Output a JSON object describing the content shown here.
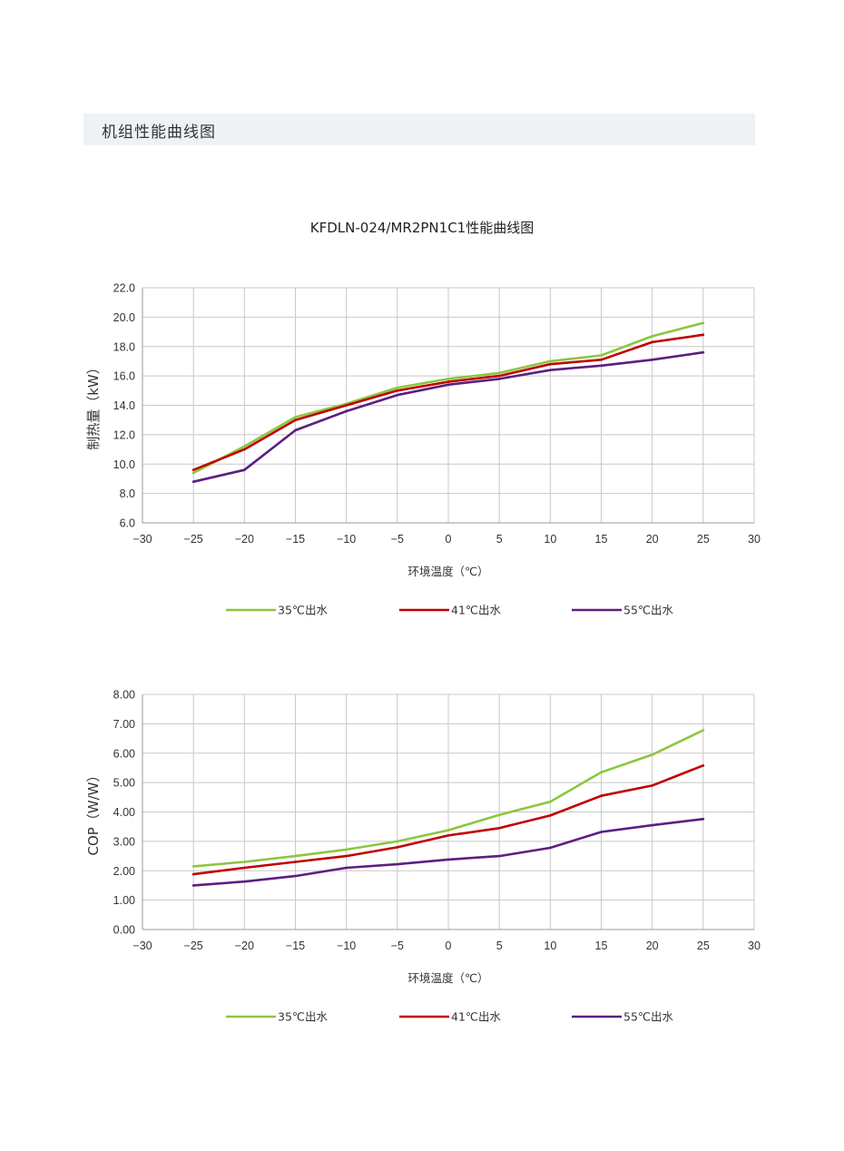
{
  "section": {
    "title": "机组性能曲线图"
  },
  "main_title": "KFDLN-024/MR2PN1C1性能曲线图",
  "chart_data": [
    {
      "type": "line",
      "ylabel": "制热量（kW）",
      "xlabel": "环境温度（℃）",
      "xlim": [
        -30,
        30
      ],
      "ylim": [
        6.0,
        22.0
      ],
      "xticks": [
        -30,
        -25,
        -20,
        -15,
        -10,
        -5,
        0,
        5,
        10,
        15,
        20,
        25,
        30
      ],
      "xtick_labels": [
        "−30",
        "−25",
        "−20",
        "−15",
        "−10",
        "−5",
        "0",
        "5",
        "10",
        "15",
        "20",
        "25",
        "30"
      ],
      "yticks": [
        6.0,
        8.0,
        10.0,
        12.0,
        14.0,
        16.0,
        18.0,
        20.0,
        22.0
      ],
      "ytick_labels": [
        "6.0",
        "8.0",
        "10.0",
        "12.0",
        "14.0",
        "16.0",
        "18.0",
        "20.0",
        "22.0"
      ],
      "grid": true,
      "legend_position": "bottom",
      "x": [
        -25,
        -20,
        -15,
        -10,
        -5,
        0,
        5,
        10,
        15,
        20,
        25
      ],
      "series": [
        {
          "name": "35℃出水",
          "color": "#8cc63f",
          "values": [
            9.4,
            11.2,
            13.2,
            14.1,
            15.2,
            15.8,
            16.2,
            17.0,
            17.4,
            18.7,
            19.6
          ]
        },
        {
          "name": "41℃出水",
          "color": "#c00000",
          "values": [
            9.6,
            11.0,
            13.0,
            14.0,
            15.0,
            15.6,
            16.0,
            16.8,
            17.1,
            18.3,
            18.8
          ]
        },
        {
          "name": "55℃出水",
          "color": "#5b1f80",
          "values": [
            8.8,
            9.6,
            12.3,
            13.6,
            14.7,
            15.4,
            15.8,
            16.4,
            16.7,
            17.1,
            17.6
          ]
        }
      ]
    },
    {
      "type": "line",
      "ylabel": "COP（W/W）",
      "xlabel": "环境温度（℃）",
      "xlim": [
        -30,
        30
      ],
      "ylim": [
        0.0,
        8.0
      ],
      "xticks": [
        -30,
        -25,
        -20,
        -15,
        -10,
        -5,
        0,
        5,
        10,
        15,
        20,
        25,
        30
      ],
      "xtick_labels": [
        "−30",
        "−25",
        "−20",
        "−15",
        "−10",
        "−5",
        "0",
        "5",
        "10",
        "15",
        "20",
        "25",
        "30"
      ],
      "yticks": [
        0,
        1,
        2,
        3,
        4,
        5,
        6,
        7,
        8
      ],
      "ytick_labels": [
        "0.00",
        "1.00",
        "2.00",
        "3.00",
        "4.00",
        "5.00",
        "6.00",
        "7.00",
        "8.00"
      ],
      "grid": true,
      "legend_position": "bottom",
      "x": [
        -25,
        -20,
        -15,
        -10,
        -5,
        0,
        5,
        10,
        15,
        20,
        25
      ],
      "series": [
        {
          "name": "35℃出水",
          "color": "#8cc63f",
          "values": [
            2.15,
            2.3,
            2.5,
            2.72,
            3.0,
            3.38,
            3.9,
            4.35,
            5.35,
            5.95,
            6.78
          ]
        },
        {
          "name": "41℃出水",
          "color": "#c00000",
          "values": [
            1.88,
            2.1,
            2.3,
            2.5,
            2.8,
            3.2,
            3.45,
            3.88,
            4.55,
            4.9,
            5.58
          ]
        },
        {
          "name": "55℃出水",
          "color": "#5b1f80",
          "values": [
            1.5,
            1.63,
            1.82,
            2.1,
            2.22,
            2.38,
            2.5,
            2.78,
            3.32,
            3.55,
            3.76
          ]
        }
      ]
    }
  ]
}
